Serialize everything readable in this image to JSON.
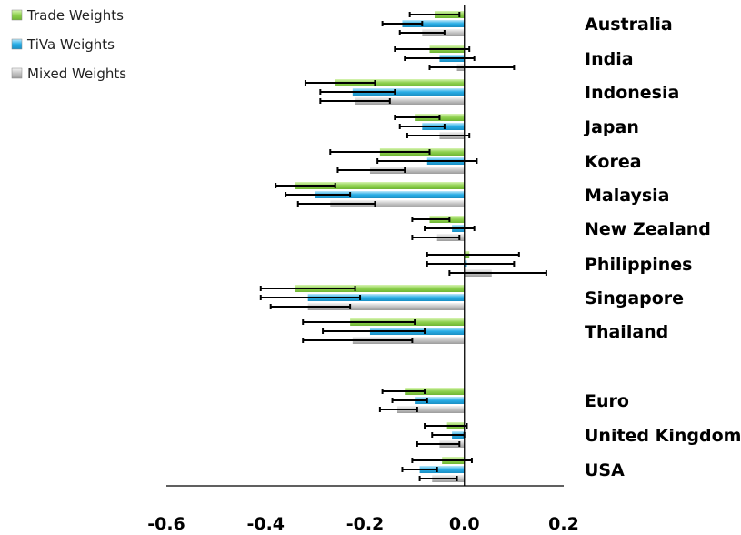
{
  "chart_data": {
    "type": "bar",
    "orientation": "horizontal",
    "categories": [
      "Australia",
      "India",
      "Indonesia",
      "Japan",
      "Korea",
      "Malaysia",
      "New Zealand",
      "Philippines",
      "Singapore",
      "Thailand",
      "Euro",
      "United Kingdom",
      "USA"
    ],
    "series": [
      {
        "name": "Trade Weights",
        "color": "#8fd14f",
        "values": [
          -0.06,
          -0.07,
          -0.26,
          -0.1,
          -0.17,
          -0.34,
          -0.07,
          0.01,
          -0.34,
          -0.23,
          -0.12,
          -0.035,
          -0.045
        ],
        "error_low": [
          -0.11,
          -0.14,
          -0.32,
          -0.14,
          -0.27,
          -0.38,
          -0.105,
          -0.075,
          -0.41,
          -0.325,
          -0.165,
          -0.08,
          -0.105
        ],
        "error_high": [
          -0.01,
          0.01,
          -0.18,
          -0.05,
          -0.07,
          -0.26,
          -0.03,
          0.11,
          -0.22,
          -0.1,
          -0.08,
          0.005,
          0.015
        ]
      },
      {
        "name": "TiVa Weights",
        "color": "#29aee6",
        "values": [
          -0.125,
          -0.05,
          -0.225,
          -0.085,
          -0.075,
          -0.3,
          -0.025,
          0.005,
          -0.315,
          -0.19,
          -0.1,
          -0.025,
          -0.09
        ],
        "error_low": [
          -0.165,
          -0.12,
          -0.29,
          -0.13,
          -0.175,
          -0.36,
          -0.08,
          -0.075,
          -0.41,
          -0.285,
          -0.145,
          -0.065,
          -0.125
        ],
        "error_high": [
          -0.085,
          0.02,
          -0.14,
          -0.04,
          0.025,
          -0.23,
          0.02,
          0.1,
          -0.21,
          -0.08,
          -0.075,
          0.0,
          -0.055
        ]
      },
      {
        "name": "Mixed Weights",
        "color": "#b4b4b4",
        "values": [
          -0.085,
          -0.015,
          -0.22,
          -0.05,
          -0.19,
          -0.27,
          -0.055,
          0.055,
          -0.315,
          -0.225,
          -0.135,
          -0.05,
          -0.065
        ],
        "error_low": [
          -0.13,
          -0.07,
          -0.29,
          -0.115,
          -0.255,
          -0.335,
          -0.105,
          -0.03,
          -0.39,
          -0.325,
          -0.17,
          -0.095,
          -0.09
        ],
        "error_high": [
          -0.04,
          0.1,
          -0.15,
          0.01,
          -0.12,
          -0.18,
          -0.01,
          0.165,
          -0.23,
          -0.105,
          -0.095,
          -0.01,
          -0.015
        ]
      }
    ],
    "xlim": [
      -0.6,
      0.2
    ],
    "xticks": [
      "-0.6",
      "-0.4",
      "-0.2",
      "0.0",
      "0.2"
    ],
    "xtick_values": [
      -0.6,
      -0.4,
      -0.2,
      0.0,
      0.2
    ],
    "legend_position": "top-left",
    "grid": false
  }
}
